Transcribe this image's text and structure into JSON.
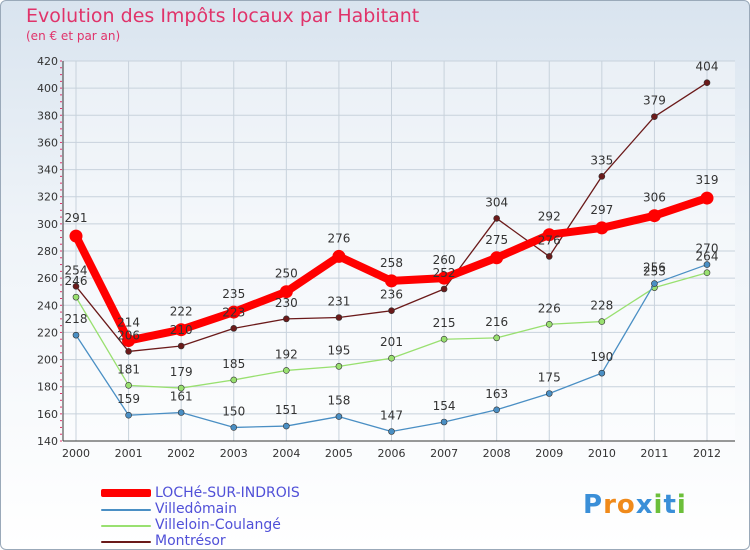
{
  "colors": {
    "title": "#e0336a",
    "axis": "#333333",
    "grid": "#c8d2dc",
    "tick_marks": "#e0336a"
  },
  "logo": {
    "letters": [
      "P",
      "r",
      "o",
      "x",
      "i",
      "t",
      "i"
    ]
  },
  "chart_data": {
    "type": "line",
    "title": "Evolution des Impôts locaux par Habitant",
    "subtitle": "(en € et par an)",
    "categories": [
      "2000",
      "2001",
      "2002",
      "2003",
      "2004",
      "2005",
      "2006",
      "2007",
      "2008",
      "2009",
      "2010",
      "2011",
      "2012"
    ],
    "y_ticks": [
      "140",
      "160",
      "180",
      "200",
      "220",
      "240",
      "260",
      "280",
      "300",
      "320",
      "340",
      "360",
      "380",
      "400",
      "420"
    ],
    "ylim": [
      140,
      420
    ],
    "grid": true,
    "legend_position": "bottom-left",
    "series": [
      {
        "name": "LOCHé-SUR-INDROIS",
        "color": "#ff0000",
        "emphasis": true,
        "values": [
          291,
          214,
          222,
          235,
          250,
          276,
          258,
          260,
          275,
          292,
          297,
          306,
          319
        ]
      },
      {
        "name": "Villedômain",
        "color": "#4a8fc4",
        "values": [
          218,
          159,
          161,
          150,
          151,
          158,
          147,
          154,
          163,
          175,
          190,
          256,
          270
        ]
      },
      {
        "name": "Villeloin-Coulangé",
        "color": "#99e070",
        "values": [
          246,
          181,
          179,
          185,
          192,
          195,
          201,
          215,
          216,
          226,
          228,
          253,
          264
        ]
      },
      {
        "name": "Montrésor",
        "color": "#6b1a1a",
        "values": [
          254,
          206,
          210,
          223,
          230,
          231,
          236,
          252,
          304,
          276,
          335,
          379,
          404
        ]
      }
    ]
  }
}
